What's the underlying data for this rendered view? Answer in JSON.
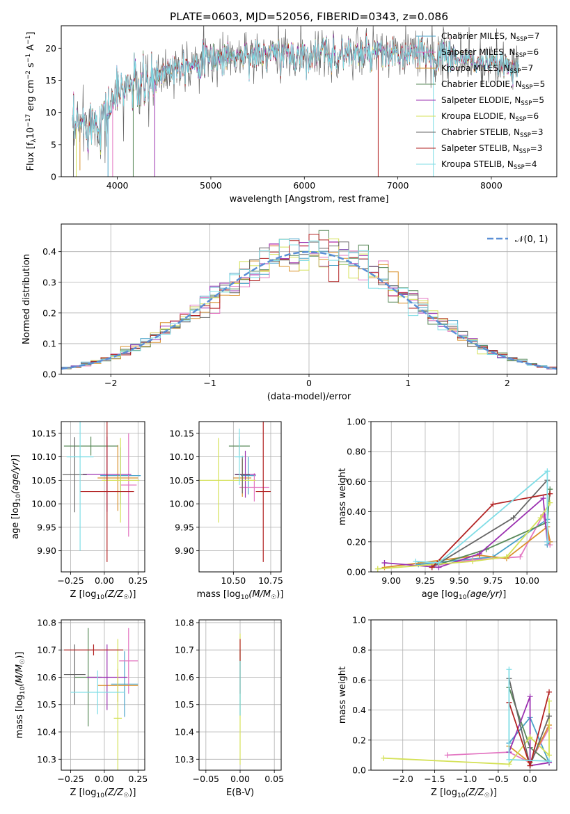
{
  "figure_title": "PLATE=0603, MJD=52056, FIBERID=0343, z=0.086",
  "colors": {
    "chabrier_miles": "#4aa3c9",
    "salpeter_miles": "#e377c2",
    "kroupa_miles": "#d9902b",
    "chabrier_elodie": "#5a8a5a",
    "salpeter_elodie": "#9b30b0",
    "kroupa_elodie": "#d4e157",
    "chabrier_stelib": "#666666",
    "salpeter_stelib": "#b22222",
    "kroupa_stelib": "#7fdde6",
    "normal_curve": "#5b8fd6"
  },
  "chart_data": [
    {
      "id": "spectrum",
      "type": "line",
      "title": "PLATE=0603, MJD=52056, FIBERID=0343, z=0.086",
      "xlabel": "wavelength [Angstrom, rest frame]",
      "ylabel": "Flux [f_λ 10^-17 erg cm^-2 s^-1 A^-1]",
      "xlim": [
        3400,
        8700
      ],
      "ylim": [
        0,
        23.5
      ],
      "xticks": [
        4000,
        5000,
        6000,
        7000,
        8000
      ],
      "yticks": [
        0,
        5,
        10,
        15,
        20
      ],
      "legend_position": "right",
      "legend": [
        {
          "name": "Chabrier MILES",
          "nssp": "7",
          "color_key": "chabrier_miles"
        },
        {
          "name": "Salpeter MILES",
          "nssp": "6",
          "color_key": "salpeter_miles"
        },
        {
          "name": "Kroupa MILES",
          "nssp": "7",
          "color_key": "kroupa_miles"
        },
        {
          "name": "Chabrier ELODIE",
          "nssp": "5",
          "color_key": "chabrier_elodie"
        },
        {
          "name": "Salpeter ELODIE",
          "nssp": "5",
          "color_key": "salpeter_elodie"
        },
        {
          "name": "Kroupa ELODIE",
          "nssp": "6",
          "color_key": "kroupa_elodie"
        },
        {
          "name": "Chabrier STELIB",
          "nssp": "3",
          "color_key": "chabrier_stelib"
        },
        {
          "name": "Salpeter STELIB",
          "nssp": "3",
          "color_key": "salpeter_stelib"
        },
        {
          "name": "Kroupa STELIB",
          "nssp": "4",
          "color_key": "kroupa_stelib"
        }
      ],
      "continuum": [
        [
          3520,
          7
        ],
        [
          3600,
          8
        ],
        [
          3700,
          8.5
        ],
        [
          3800,
          9
        ],
        [
          3900,
          10
        ],
        [
          4000,
          13
        ],
        [
          4100,
          14
        ],
        [
          4200,
          14.5
        ],
        [
          4300,
          14
        ],
        [
          4400,
          15
        ],
        [
          4500,
          16.5
        ],
        [
          4700,
          17.5
        ],
        [
          4900,
          18
        ],
        [
          5100,
          18.5
        ],
        [
          5300,
          18.8
        ],
        [
          5500,
          19
        ],
        [
          5800,
          19
        ],
        [
          6000,
          19
        ],
        [
          6300,
          19.2
        ],
        [
          6600,
          19
        ],
        [
          7000,
          18.8
        ],
        [
          7300,
          19
        ],
        [
          7600,
          18.5
        ],
        [
          8000,
          17.5
        ],
        [
          8300,
          17
        ]
      ],
      "dips": [
        [
          3530,
          0
        ],
        [
          3560,
          0
        ],
        [
          3600,
          1
        ],
        [
          3900,
          0
        ],
        [
          3950,
          0
        ],
        [
          4170,
          0
        ],
        [
          4400,
          0
        ],
        [
          6790,
          0
        ],
        [
          7380,
          0
        ]
      ]
    },
    {
      "id": "residual_hist",
      "type": "histogram",
      "xlabel": "(data-model)/error",
      "ylabel": "Normed distribution",
      "xlim": [
        -2.5,
        2.5
      ],
      "ylim": [
        0,
        0.49
      ],
      "xticks": [
        -2,
        -1,
        0,
        1,
        2
      ],
      "yticks": [
        0.0,
        0.1,
        0.2,
        0.3,
        0.4
      ],
      "bin_width": 0.1,
      "legend_position": "upper right",
      "legend_label": "𝒩(0, 1)",
      "normal_mean": 0,
      "normal_sigma": 1
    },
    {
      "id": "age_vs_Z",
      "type": "scatter_errorbar",
      "xlabel": "Z [log10(Z/Z☉)]",
      "ylabel": "age [log10(age/yr)]",
      "xlim": [
        -0.32,
        0.3
      ],
      "ylim": [
        9.855,
        10.175
      ],
      "xticks": [
        -0.25,
        0.0,
        0.25
      ],
      "yticks": [
        9.9,
        9.95,
        10.0,
        10.05,
        10.1,
        10.15
      ],
      "points": [
        {
          "color_key": "chabrier_miles",
          "x": 0.12,
          "y": 10.06,
          "xerr": 0.15,
          "yerr": 0.06
        },
        {
          "color_key": "salpeter_miles",
          "x": 0.18,
          "y": 10.04,
          "xerr": 0.06,
          "yerr": 0.11
        },
        {
          "color_key": "kroupa_miles",
          "x": 0.1,
          "y": 10.055,
          "xerr": 0.15,
          "yerr": 0.07
        },
        {
          "color_key": "chabrier_elodie",
          "x": -0.1,
          "y": 10.123,
          "xerr": 0.2,
          "yerr": 0.02
        },
        {
          "color_key": "salpeter_elodie",
          "x": 0.02,
          "y": 10.063,
          "xerr": 0.18,
          "yerr": 0.08
        },
        {
          "color_key": "kroupa_elodie",
          "x": 0.12,
          "y": 10.05,
          "xerr": 0.14,
          "yerr": 0.09
        },
        {
          "color_key": "chabrier_stelib",
          "x": -0.22,
          "y": 10.062,
          "xerr": 0.09,
          "yerr": 0.08
        },
        {
          "color_key": "salpeter_stelib",
          "x": 0.02,
          "y": 10.026,
          "xerr": 0.2,
          "yerr": 0.15
        },
        {
          "color_key": "kroupa_stelib",
          "x": -0.18,
          "y": 10.1,
          "xerr": 0.1,
          "yerr": 0.2
        }
      ]
    },
    {
      "id": "age_vs_mass",
      "type": "scatter_errorbar",
      "xlabel": "mass [log10(M/M☉)]",
      "ylabel": "",
      "xlim": [
        10.27,
        10.82
      ],
      "ylim": [
        9.855,
        10.175
      ],
      "xticks": [
        10.5,
        10.75
      ],
      "yticks": [
        9.9,
        9.95,
        10.0,
        10.05,
        10.1,
        10.15
      ],
      "points": [
        {
          "color_key": "chabrier_miles",
          "x": 10.6,
          "y": 10.06,
          "xerr": 0.05,
          "yerr": 0.04
        },
        {
          "color_key": "salpeter_miles",
          "x": 10.64,
          "y": 10.035,
          "xerr": 0.1,
          "yerr": 0.03
        },
        {
          "color_key": "kroupa_miles",
          "x": 10.56,
          "y": 10.055,
          "xerr": 0.06,
          "yerr": 0.04
        },
        {
          "color_key": "chabrier_elodie",
          "x": 10.54,
          "y": 10.123,
          "xerr": 0.07,
          "yerr": 0.02
        },
        {
          "color_key": "salpeter_elodie",
          "x": 10.58,
          "y": 10.063,
          "xerr": 0.07,
          "yerr": 0.05
        },
        {
          "color_key": "kroupa_elodie",
          "x": 10.4,
          "y": 10.05,
          "xerr": 0.25,
          "yerr": 0.09
        },
        {
          "color_key": "chabrier_stelib",
          "x": 10.56,
          "y": 10.062,
          "xerr": 0.05,
          "yerr": 0.04
        },
        {
          "color_key": "salpeter_stelib",
          "x": 10.7,
          "y": 10.026,
          "xerr": 0.05,
          "yerr": 0.15
        },
        {
          "color_key": "kroupa_stelib",
          "x": 10.54,
          "y": 10.1,
          "xerr": 0.03,
          "yerr": 0.06
        }
      ]
    },
    {
      "id": "mass_weight_vs_age",
      "type": "line",
      "xlabel": "age [log10(age/yr)]",
      "ylabel": "mass weight",
      "xlim": [
        8.85,
        10.22
      ],
      "ylim": [
        0,
        1.0
      ],
      "xticks": [
        9.0,
        9.25,
        9.5,
        9.75,
        10.0
      ],
      "yticks": [
        0.0,
        0.2,
        0.4,
        0.6,
        0.8,
        1.0
      ],
      "series": [
        {
          "color_key": "chabrier_miles",
          "x": [
            9.2,
            9.75,
            10.15,
            10.15,
            10.17
          ],
          "y": [
            0.05,
            0.1,
            0.35,
            0.18,
            0.2
          ]
        },
        {
          "color_key": "salpeter_miles",
          "x": [
            9.3,
            9.6,
            9.95,
            10.12,
            10.17
          ],
          "y": [
            0.04,
            0.08,
            0.1,
            0.38,
            0.18
          ]
        },
        {
          "color_key": "kroupa_miles",
          "x": [
            8.95,
            9.65,
            9.85,
            10.15,
            10.17
          ],
          "y": [
            0.03,
            0.11,
            0.09,
            0.3,
            0.2
          ]
        },
        {
          "color_key": "chabrier_elodie",
          "x": [
            9.35,
            9.7,
            10.15,
            10.17
          ],
          "y": [
            0.05,
            0.15,
            0.33,
            0.55
          ]
        },
        {
          "color_key": "salpeter_elodie",
          "x": [
            8.95,
            9.35,
            9.65,
            10.12,
            10.15
          ],
          "y": [
            0.06,
            0.03,
            0.12,
            0.49,
            0.2
          ]
        },
        {
          "color_key": "kroupa_elodie",
          "x": [
            8.9,
            9.6,
            9.85,
            10.1,
            10.17
          ],
          "y": [
            0.02,
            0.07,
            0.1,
            0.36,
            0.46
          ]
        },
        {
          "color_key": "chabrier_stelib",
          "x": [
            9.3,
            9.9,
            10.15
          ],
          "y": [
            0.03,
            0.36,
            0.61
          ]
        },
        {
          "color_key": "salpeter_stelib",
          "x": [
            9.3,
            9.75,
            10.17
          ],
          "y": [
            0.03,
            0.45,
            0.52
          ]
        },
        {
          "color_key": "kroupa_stelib",
          "x": [
            9.18,
            9.35,
            10.15,
            10.15
          ],
          "y": [
            0.07,
            0.06,
            0.67,
            0.2
          ]
        }
      ]
    },
    {
      "id": "mass_vs_Z",
      "type": "scatter_errorbar",
      "xlabel": "Z [log10(Z/Z☉)]",
      "ylabel": "mass [log10(M/M☉)]",
      "xlim": [
        -0.32,
        0.3
      ],
      "ylim": [
        10.26,
        10.81
      ],
      "xticks": [
        -0.25,
        0.0,
        0.25
      ],
      "yticks": [
        10.3,
        10.4,
        10.5,
        10.6,
        10.7,
        10.8
      ],
      "points": [
        {
          "color_key": "chabrier_miles",
          "x": 0.15,
          "y": 10.575,
          "xerr": 0.1,
          "yerr": 0.12
        },
        {
          "color_key": "salpeter_miles",
          "x": 0.18,
          "y": 10.66,
          "xerr": 0.07,
          "yerr": 0.12
        },
        {
          "color_key": "kroupa_miles",
          "x": 0.1,
          "y": 10.57,
          "xerr": 0.15,
          "yerr": 0.06
        },
        {
          "color_key": "chabrier_elodie",
          "x": -0.12,
          "y": 10.6,
          "xerr": 0.1,
          "yerr": 0.18
        },
        {
          "color_key": "salpeter_elodie",
          "x": 0.02,
          "y": 10.6,
          "xerr": 0.15,
          "yerr": 0.12
        },
        {
          "color_key": "kroupa_elodie",
          "x": 0.1,
          "y": 10.45,
          "xerr": 0.03,
          "yerr": 0.29
        },
        {
          "color_key": "chabrier_stelib",
          "x": -0.22,
          "y": 10.61,
          "xerr": 0.08,
          "yerr": 0.11
        },
        {
          "color_key": "salpeter_stelib",
          "x": -0.08,
          "y": 10.7,
          "xerr": 0.22,
          "yerr": 0.02
        },
        {
          "color_key": "kroupa_stelib",
          "x": -0.05,
          "y": 10.545,
          "xerr": 0.2,
          "yerr": 0.08
        }
      ]
    },
    {
      "id": "mass_vs_ebv",
      "type": "scatter_errorbar",
      "xlabel": "E(B-V)",
      "ylabel": "",
      "xlim": [
        -0.06,
        0.06
      ],
      "ylim": [
        10.26,
        10.81
      ],
      "xticks": [
        -0.05,
        0.0,
        0.05
      ],
      "yticks": [
        10.3,
        10.4,
        10.5,
        10.6,
        10.7,
        10.8
      ],
      "points": [
        {
          "color_key": "kroupa_elodie",
          "x": 0.0,
          "y": 10.52,
          "xerr": 0.0,
          "yerr": 0.24
        },
        {
          "color_key": "chabrier_elodie",
          "x": 0.0,
          "y": 10.58,
          "xerr": 0.0,
          "yerr": 0.12
        },
        {
          "color_key": "salpeter_stelib",
          "x": 0.0,
          "y": 10.64,
          "xerr": 0.0,
          "yerr": 0.1
        },
        {
          "color_key": "kroupa_stelib",
          "x": 0.0,
          "y": 10.56,
          "xerr": 0.0,
          "yerr": 0.1
        }
      ]
    },
    {
      "id": "mass_weight_vs_Z",
      "type": "line",
      "xlabel": "Z [log10(Z/Z☉)]",
      "ylabel": "mass weight",
      "xlim": [
        -2.5,
        0.42
      ],
      "ylim": [
        0,
        1.0
      ],
      "xticks": [
        -2.0,
        -1.5,
        -1.0,
        -0.5,
        0.0
      ],
      "yticks": [
        0.0,
        0.2,
        0.4,
        0.6,
        0.8,
        1.0
      ],
      "series": [
        {
          "color_key": "chabrier_miles",
          "x": [
            -0.33,
            0.0,
            0.3
          ],
          "y": [
            0.18,
            0.35,
            0.05
          ]
        },
        {
          "color_key": "salpeter_miles",
          "x": [
            -1.3,
            -0.33,
            0.0,
            0.3
          ],
          "y": [
            0.1,
            0.12,
            0.05,
            0.28
          ]
        },
        {
          "color_key": "kroupa_miles",
          "x": [
            -0.33,
            0.0,
            0.3
          ],
          "y": [
            0.16,
            0.05,
            0.3
          ]
        },
        {
          "color_key": "chabrier_elodie",
          "x": [
            -0.33,
            0.0,
            0.3
          ],
          "y": [
            0.55,
            0.15,
            0.05
          ]
        },
        {
          "color_key": "salpeter_elodie",
          "x": [
            -0.33,
            0.0,
            0.0,
            0.3
          ],
          "y": [
            0.12,
            0.49,
            0.03,
            0.05
          ]
        },
        {
          "color_key": "kroupa_elodie",
          "x": [
            -2.3,
            -0.33,
            0.0,
            0.3,
            0.3
          ],
          "y": [
            0.08,
            0.04,
            0.22,
            0.1,
            0.46
          ]
        },
        {
          "color_key": "chabrier_stelib",
          "x": [
            -0.33,
            0.0,
            0.3
          ],
          "y": [
            0.61,
            0.03,
            0.36
          ]
        },
        {
          "color_key": "salpeter_stelib",
          "x": [
            -0.33,
            0.0,
            0.3
          ],
          "y": [
            0.45,
            0.03,
            0.52
          ]
        },
        {
          "color_key": "kroupa_stelib",
          "x": [
            -0.33,
            -0.33,
            0.3
          ],
          "y": [
            0.67,
            0.07,
            0.06
          ]
        }
      ]
    }
  ]
}
